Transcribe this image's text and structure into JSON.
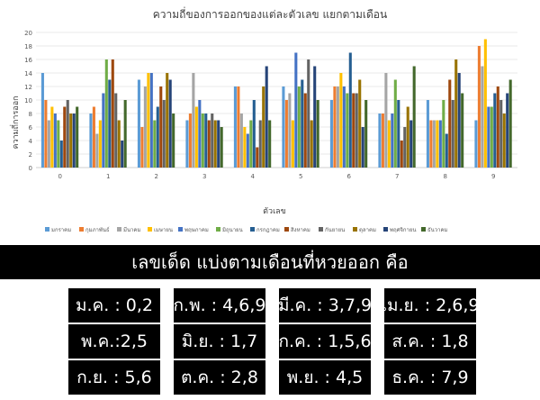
{
  "chart_data": {
    "type": "bar",
    "title": "ความถี่ของการออกของแต่ละตัวเลข แยกตามเดือน",
    "xlabel": "ตัวเลข",
    "ylabel": "ความถี่การออก",
    "ylim": [
      0,
      20
    ],
    "yticks": [
      0,
      2,
      4,
      6,
      8,
      10,
      12,
      14,
      16,
      18,
      20
    ],
    "grid": true,
    "legend": "bottom",
    "categories": [
      "0",
      "1",
      "2",
      "3",
      "4",
      "5",
      "6",
      "7",
      "8",
      "9"
    ],
    "series": [
      {
        "name": "มกราคม",
        "color": "#5b9bd5",
        "values": [
          14,
          8,
          13,
          7,
          12,
          12,
          10,
          8,
          10,
          7
        ]
      },
      {
        "name": "กุมภาพันธ์",
        "color": "#ed7d31",
        "values": [
          10,
          9,
          6,
          8,
          12,
          10,
          12,
          8,
          7,
          18
        ]
      },
      {
        "name": "มีนาคม",
        "color": "#a5a5a5",
        "values": [
          7,
          5,
          12,
          14,
          8,
          11,
          12,
          14,
          7,
          15
        ]
      },
      {
        "name": "เมษายน",
        "color": "#ffc000",
        "values": [
          9,
          7,
          14,
          9,
          6,
          7,
          14,
          7,
          7,
          19
        ]
      },
      {
        "name": "พฤษภาคม",
        "color": "#4472c4",
        "values": [
          8,
          11,
          14,
          10,
          5,
          17,
          12,
          8,
          7,
          9
        ]
      },
      {
        "name": "มิถุนายน",
        "color": "#70ad47",
        "values": [
          7,
          16,
          7,
          8,
          7,
          12,
          11,
          13,
          10,
          9
        ]
      },
      {
        "name": "กรกฎาคม",
        "color": "#255e91",
        "values": [
          4,
          13,
          9,
          8,
          10,
          13,
          17,
          10,
          5,
          11
        ]
      },
      {
        "name": "สิงหาคม",
        "color": "#9e480e",
        "values": [
          9,
          16,
          12,
          7,
          3,
          11,
          11,
          4,
          13,
          12
        ]
      },
      {
        "name": "กันยายน",
        "color": "#636363",
        "values": [
          10,
          11,
          10,
          8,
          7,
          16,
          11,
          6,
          10,
          10
        ]
      },
      {
        "name": "ตุลาคม",
        "color": "#997300",
        "values": [
          8,
          7,
          14,
          7,
          12,
          7,
          13,
          9,
          16,
          8
        ]
      },
      {
        "name": "พฤศจิกายน",
        "color": "#264478",
        "values": [
          8,
          4,
          13,
          7,
          15,
          15,
          6,
          7,
          14,
          11
        ]
      },
      {
        "name": "ธันวาคม",
        "color": "#43682b",
        "values": [
          9,
          10,
          8,
          6,
          7,
          10,
          10,
          15,
          11,
          13
        ]
      }
    ]
  },
  "banner": {
    "text": "เลขเด็ด แบ่งตามเดือนที่หวยออก คือ"
  },
  "months": [
    {
      "label": "ม.ค. : 0,2"
    },
    {
      "label": "ก.พ. : 4,6,9"
    },
    {
      "label": "มี.ค. : 3,7,9"
    },
    {
      "label": "เม.ย. : 2,6,9"
    },
    {
      "label": "พ.ค.:2,5"
    },
    {
      "label": "มิ.ย. : 1,7"
    },
    {
      "label": "ก.ค. : 1,5,6"
    },
    {
      "label": "ส.ค. : 1,8"
    },
    {
      "label": "ก.ย. : 5,6"
    },
    {
      "label": "ต.ค. : 2,8"
    },
    {
      "label": "พ.ย. : 4,5"
    },
    {
      "label": "ธ.ค. : 7,9"
    }
  ]
}
